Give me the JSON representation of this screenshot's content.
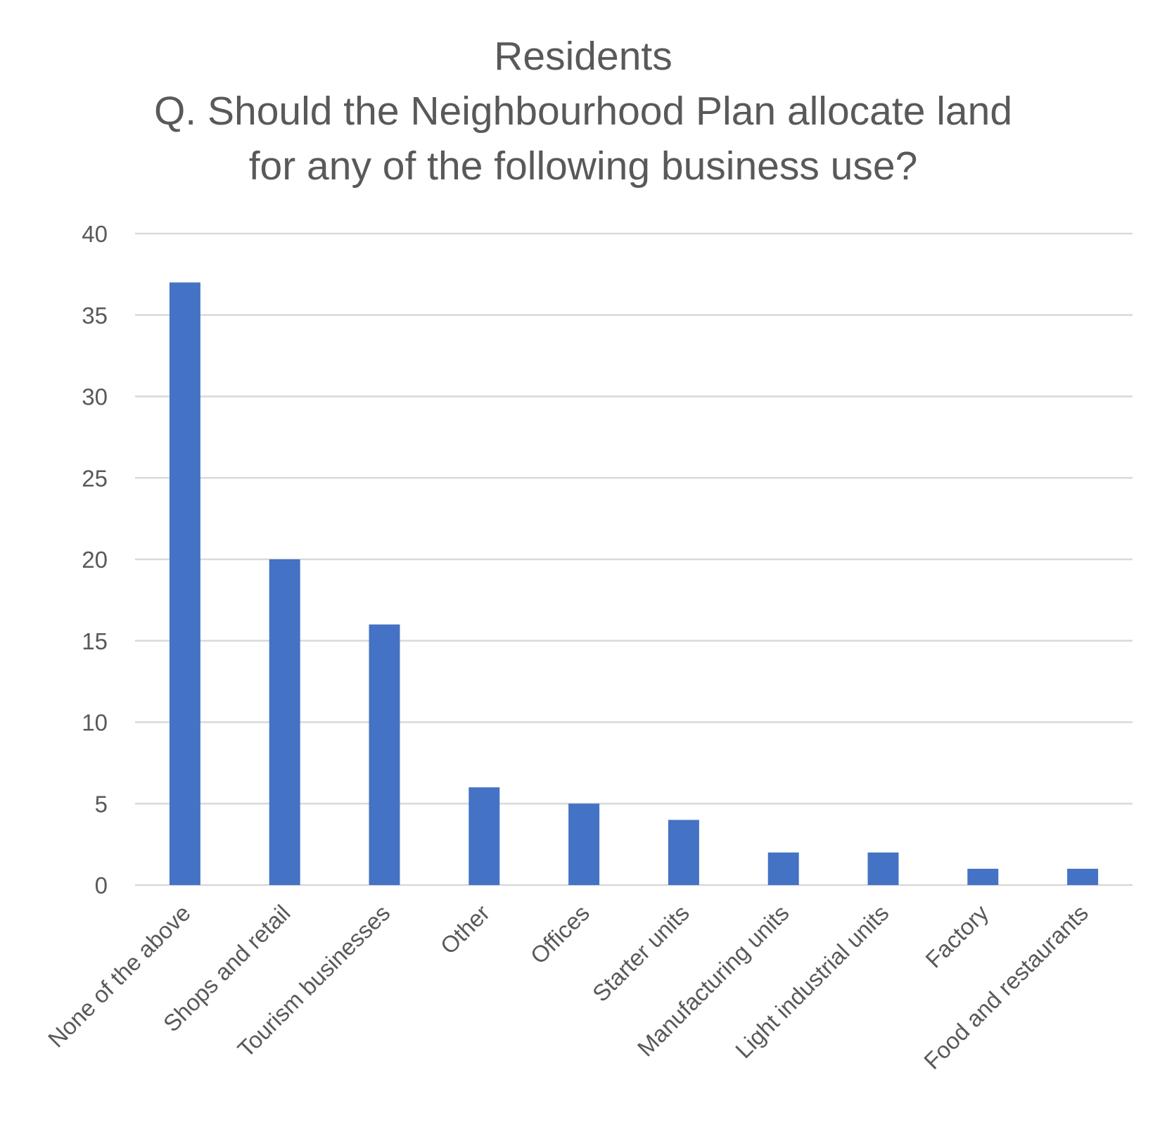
{
  "chart_data": {
    "type": "bar",
    "title_lines": [
      "Residents",
      "Q. Should the Neighbourhood Plan allocate land",
      "for any of the following business use?"
    ],
    "categories": [
      "None of the above",
      "Shops and retail",
      "Tourism businesses",
      "Other",
      "Offices",
      "Starter units",
      "Manufacturing units",
      "Light industrial units",
      "Factory",
      "Food and restaurants"
    ],
    "values": [
      37,
      20,
      16,
      6,
      5,
      4,
      2,
      2,
      1,
      1
    ],
    "ylim": [
      0,
      40
    ],
    "yticks": [
      0,
      5,
      10,
      15,
      20,
      25,
      30,
      35,
      40
    ],
    "grid": true,
    "legend": "none",
    "xlabel": "",
    "ylabel": "",
    "colors": {
      "bar": "#4472C4",
      "text": "#595959",
      "grid": "#D9D9D9"
    }
  }
}
